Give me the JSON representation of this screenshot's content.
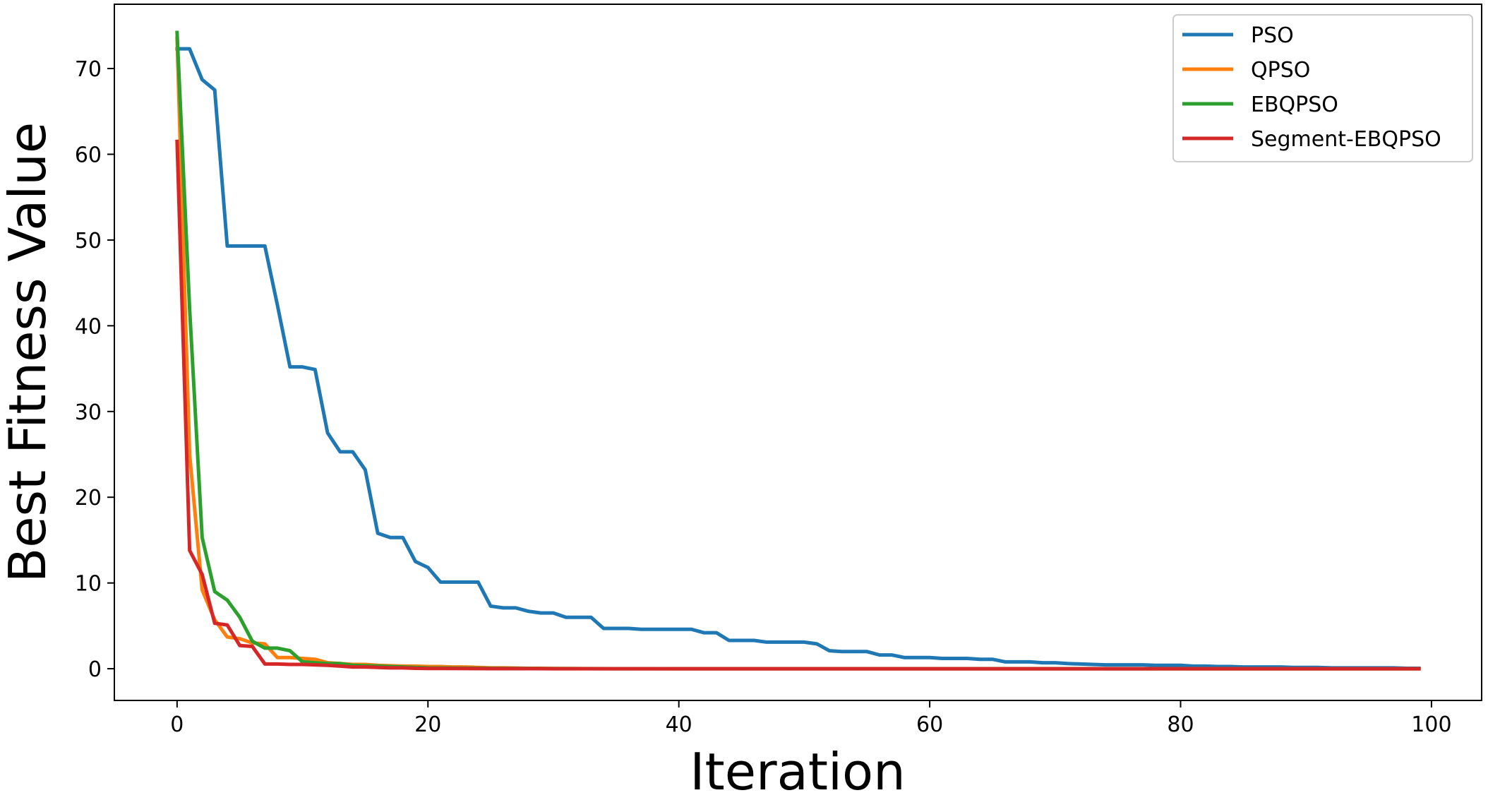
{
  "chart_data": {
    "type": "line",
    "title": "",
    "xlabel": "Iteration",
    "ylabel": "Best Fitness Value",
    "xlim": [
      -5,
      104
    ],
    "ylim": [
      -3.7,
      77.5
    ],
    "xticks": [
      0,
      20,
      40,
      60,
      80,
      100
    ],
    "yticks": [
      0,
      10,
      20,
      30,
      40,
      50,
      60,
      70
    ],
    "grid": false,
    "legend": "top-right",
    "series": [
      {
        "name": "PSO",
        "color": "#1f77b4",
        "points": [
          [
            0,
            72.3
          ],
          [
            1,
            72.3
          ],
          [
            2,
            68.7
          ],
          [
            3,
            67.5
          ],
          [
            4,
            49.3
          ],
          [
            5,
            49.3
          ],
          [
            6,
            49.3
          ],
          [
            7,
            49.3
          ],
          [
            8,
            42.4
          ],
          [
            9,
            35.2
          ],
          [
            10,
            35.2
          ],
          [
            11,
            34.9
          ],
          [
            12,
            27.5
          ],
          [
            13,
            25.3
          ],
          [
            14,
            25.3
          ],
          [
            15,
            23.2
          ],
          [
            16,
            15.8
          ],
          [
            17,
            15.3
          ],
          [
            18,
            15.3
          ],
          [
            19,
            12.5
          ],
          [
            20,
            11.8
          ],
          [
            21,
            10.1
          ],
          [
            22,
            10.1
          ],
          [
            23,
            10.1
          ],
          [
            24,
            10.1
          ],
          [
            25,
            7.3
          ],
          [
            26,
            7.1
          ],
          [
            27,
            7.1
          ],
          [
            28,
            6.7
          ],
          [
            29,
            6.5
          ],
          [
            30,
            6.5
          ],
          [
            31,
            6.0
          ],
          [
            32,
            6.0
          ],
          [
            33,
            6.0
          ],
          [
            34,
            4.7
          ],
          [
            35,
            4.7
          ],
          [
            36,
            4.7
          ],
          [
            37,
            4.6
          ],
          [
            38,
            4.6
          ],
          [
            39,
            4.6
          ],
          [
            40,
            4.6
          ],
          [
            41,
            4.6
          ],
          [
            42,
            4.2
          ],
          [
            43,
            4.2
          ],
          [
            44,
            3.3
          ],
          [
            45,
            3.3
          ],
          [
            46,
            3.3
          ],
          [
            47,
            3.1
          ],
          [
            48,
            3.1
          ],
          [
            49,
            3.1
          ],
          [
            50,
            3.1
          ],
          [
            51,
            2.9
          ],
          [
            52,
            2.1
          ],
          [
            53,
            2.0
          ],
          [
            54,
            2.0
          ],
          [
            55,
            2.0
          ],
          [
            56,
            1.6
          ],
          [
            57,
            1.6
          ],
          [
            58,
            1.3
          ],
          [
            59,
            1.3
          ],
          [
            60,
            1.3
          ],
          [
            61,
            1.2
          ],
          [
            62,
            1.2
          ],
          [
            63,
            1.2
          ],
          [
            64,
            1.1
          ],
          [
            65,
            1.1
          ],
          [
            66,
            0.8
          ],
          [
            67,
            0.8
          ],
          [
            68,
            0.8
          ],
          [
            69,
            0.7
          ],
          [
            70,
            0.7
          ],
          [
            71,
            0.6
          ],
          [
            72,
            0.55
          ],
          [
            73,
            0.5
          ],
          [
            74,
            0.45
          ],
          [
            75,
            0.45
          ],
          [
            76,
            0.45
          ],
          [
            77,
            0.45
          ],
          [
            78,
            0.4
          ],
          [
            79,
            0.4
          ],
          [
            80,
            0.4
          ],
          [
            81,
            0.3
          ],
          [
            82,
            0.3
          ],
          [
            83,
            0.25
          ],
          [
            84,
            0.25
          ],
          [
            85,
            0.2
          ],
          [
            86,
            0.2
          ],
          [
            87,
            0.2
          ],
          [
            88,
            0.2
          ],
          [
            89,
            0.15
          ],
          [
            90,
            0.15
          ],
          [
            91,
            0.15
          ],
          [
            92,
            0.1
          ],
          [
            93,
            0.1
          ],
          [
            94,
            0.1
          ],
          [
            95,
            0.1
          ],
          [
            96,
            0.1
          ],
          [
            97,
            0.1
          ],
          [
            98,
            0.05
          ],
          [
            99,
            0.05
          ]
        ]
      },
      {
        "name": "QPSO",
        "color": "#ff7f0e",
        "points": [
          [
            0,
            73.5
          ],
          [
            1,
            25.0
          ],
          [
            2,
            9.2
          ],
          [
            3,
            5.7
          ],
          [
            4,
            3.7
          ],
          [
            5,
            3.5
          ],
          [
            6,
            3.0
          ],
          [
            7,
            2.9
          ],
          [
            8,
            1.3
          ],
          [
            9,
            1.3
          ],
          [
            10,
            1.2
          ],
          [
            11,
            1.1
          ],
          [
            12,
            0.7
          ],
          [
            13,
            0.6
          ],
          [
            14,
            0.5
          ],
          [
            15,
            0.5
          ],
          [
            16,
            0.4
          ],
          [
            17,
            0.35
          ],
          [
            18,
            0.3
          ],
          [
            19,
            0.3
          ],
          [
            20,
            0.25
          ],
          [
            21,
            0.25
          ],
          [
            22,
            0.2
          ],
          [
            23,
            0.2
          ],
          [
            24,
            0.15
          ],
          [
            25,
            0.1
          ],
          [
            26,
            0.1
          ],
          [
            27,
            0.08
          ],
          [
            28,
            0.05
          ],
          [
            29,
            0.05
          ],
          [
            30,
            0.03
          ],
          [
            35,
            0.01
          ],
          [
            40,
            0.0
          ],
          [
            99,
            0.0
          ]
        ]
      },
      {
        "name": "EBQPSO",
        "color": "#2ca02c",
        "points": [
          [
            0,
            74.2
          ],
          [
            1,
            42.0
          ],
          [
            2,
            15.3
          ],
          [
            3,
            9.0
          ],
          [
            4,
            8.0
          ],
          [
            5,
            6.0
          ],
          [
            6,
            3.2
          ],
          [
            7,
            2.4
          ],
          [
            8,
            2.4
          ],
          [
            9,
            2.1
          ],
          [
            10,
            0.8
          ],
          [
            11,
            0.7
          ],
          [
            12,
            0.6
          ],
          [
            13,
            0.6
          ],
          [
            14,
            0.4
          ],
          [
            15,
            0.35
          ],
          [
            16,
            0.3
          ],
          [
            17,
            0.25
          ],
          [
            18,
            0.2
          ],
          [
            19,
            0.15
          ],
          [
            20,
            0.1
          ],
          [
            22,
            0.08
          ],
          [
            25,
            0.05
          ],
          [
            30,
            0.02
          ],
          [
            35,
            0.0
          ],
          [
            99,
            0.0
          ]
        ]
      },
      {
        "name": "Segment-EBQPSO",
        "color": "#d62728",
        "points": [
          [
            0,
            61.5
          ],
          [
            1,
            13.8
          ],
          [
            2,
            11.0
          ],
          [
            3,
            5.3
          ],
          [
            4,
            5.1
          ],
          [
            5,
            2.7
          ],
          [
            6,
            2.6
          ],
          [
            7,
            0.55
          ],
          [
            8,
            0.55
          ],
          [
            9,
            0.5
          ],
          [
            10,
            0.5
          ],
          [
            11,
            0.45
          ],
          [
            12,
            0.4
          ],
          [
            13,
            0.3
          ],
          [
            14,
            0.2
          ],
          [
            15,
            0.2
          ],
          [
            16,
            0.15
          ],
          [
            17,
            0.1
          ],
          [
            18,
            0.1
          ],
          [
            19,
            0.05
          ],
          [
            20,
            0.03
          ],
          [
            25,
            0.01
          ],
          [
            30,
            0.0
          ],
          [
            99,
            0.0
          ]
        ]
      }
    ]
  }
}
